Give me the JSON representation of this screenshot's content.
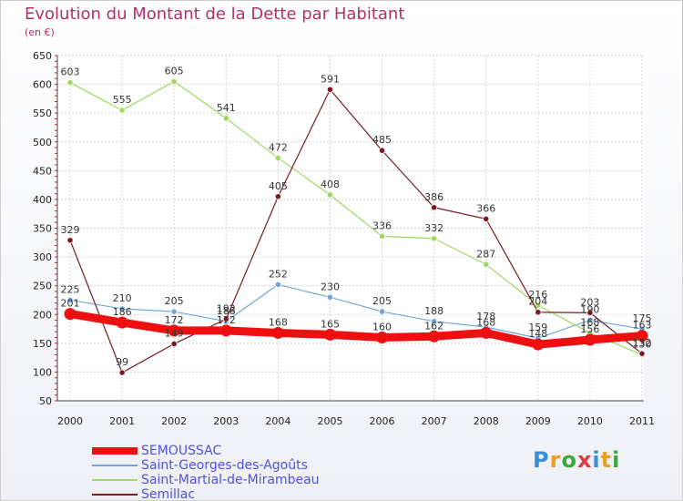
{
  "header": {
    "title": "Evolution du Montant de la Dette par Habitant",
    "unit": "(en €)"
  },
  "logo": {
    "text": "Proxiti",
    "colors": [
      "#3a8fd6",
      "#e8a020",
      "#3aa83a",
      "#d84040",
      "#3a8fd6",
      "#e8a020",
      "#3aa83a"
    ]
  },
  "chart_data": {
    "type": "line",
    "title": "Evolution du Montant de la Dette par Habitant",
    "subtitle": "(en €)",
    "x": [
      "2000",
      "2001",
      "2002",
      "2003",
      "2004",
      "2005",
      "2006",
      "2007",
      "2008",
      "2009",
      "2010",
      "2011"
    ],
    "yticks": [
      "50",
      "100",
      "150",
      "200",
      "250",
      "300",
      "350",
      "400",
      "450",
      "500",
      "550",
      "600",
      "650"
    ],
    "ylim": [
      50,
      650
    ],
    "grid": true,
    "legend_position": "bottom",
    "series": [
      {
        "name": "SEMOUSSAC",
        "color": "#ee1010",
        "width": 9,
        "values": [
          201,
          186,
          172,
          172,
          168,
          165,
          160,
          162,
          168,
          148,
          156,
          163
        ],
        "labels": [
          "201",
          "186",
          "172",
          "172",
          "168",
          "165",
          "160",
          "162",
          "168",
          "148",
          "156",
          "163"
        ]
      },
      {
        "name": "Saint-Georges-des-Agoûts",
        "color": "#6ea6d8",
        "width": 1.2,
        "values": [
          225,
          210,
          205,
          188,
          252,
          230,
          205,
          188,
          178,
          159,
          190,
          175
        ],
        "labels": [
          "225",
          "210",
          "205",
          "188",
          "252",
          "230",
          "205",
          "188",
          "178",
          "159",
          "190",
          "175"
        ]
      },
      {
        "name": "Saint-Martial-de-Mirambeau",
        "color": "#9ed860",
        "width": 1.2,
        "values": [
          603,
          555,
          605,
          541,
          472,
          408,
          336,
          332,
          287,
          216,
          168,
          130
        ],
        "labels": [
          "603",
          "555",
          "605",
          "541",
          "472",
          "408",
          "336",
          "332",
          "287",
          "216",
          "168",
          "130"
        ]
      },
      {
        "name": "Semillac",
        "color": "#7a1a20",
        "width": 1.2,
        "values": [
          329,
          99,
          149,
          192,
          405,
          591,
          485,
          386,
          366,
          204,
          203,
          132
        ],
        "labels": [
          "329",
          "99",
          "149",
          "192",
          "405",
          "591",
          "485",
          "386",
          "366",
          "204",
          "203",
          "132"
        ]
      }
    ]
  }
}
